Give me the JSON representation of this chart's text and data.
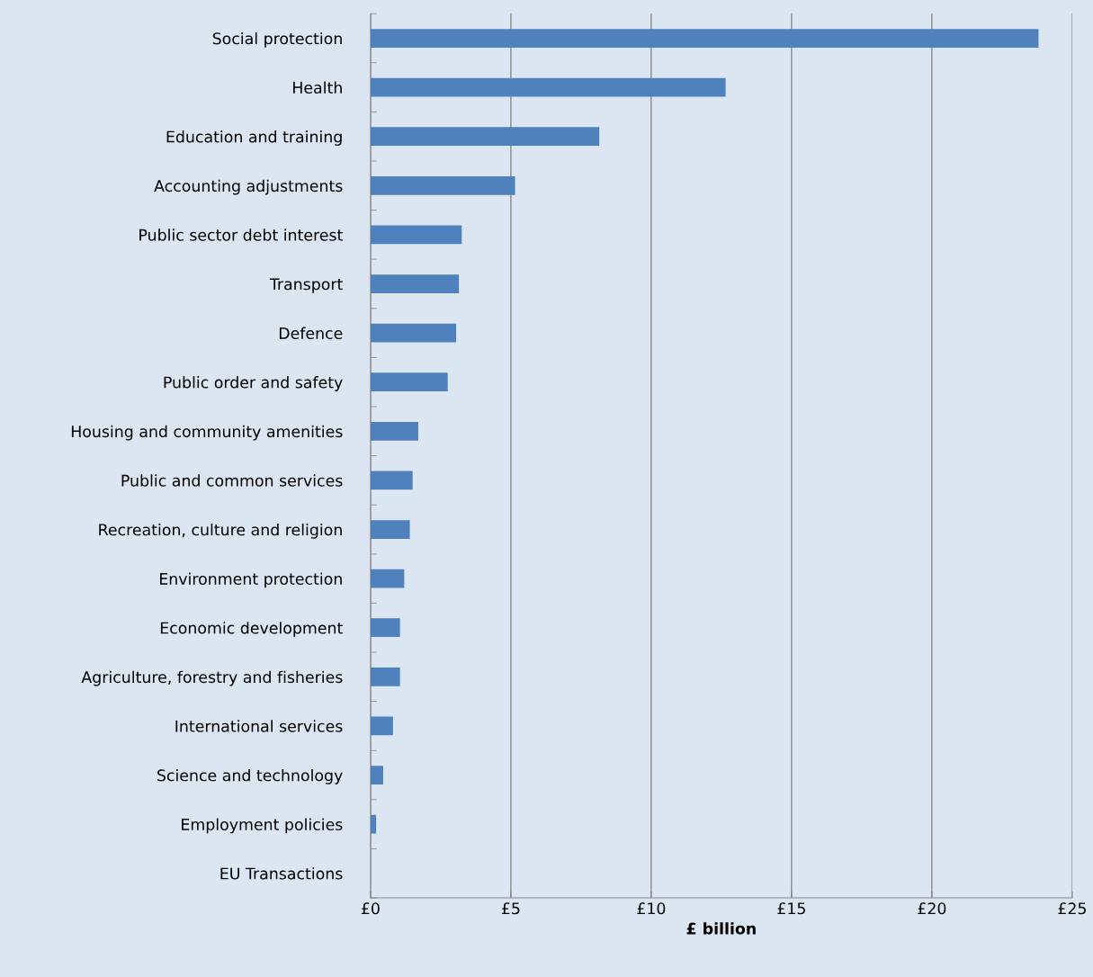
{
  "chart_data": {
    "type": "bar",
    "orientation": "horizontal",
    "xlabel": "£ billion",
    "categories": [
      "Social protection",
      "Health",
      "Education and training",
      "Accounting adjustments",
      "Public sector debt interest",
      "Transport",
      "Defence",
      "Public order and safety",
      "Housing and community amenities",
      "Public and common services",
      "Recreation, culture and religion",
      "Environment protection",
      "Economic development",
      "Agriculture, forestry and fisheries",
      "International services",
      "Science and technology",
      "Employment policies",
      "EU Transactions"
    ],
    "values": [
      23.8,
      12.65,
      8.15,
      5.15,
      3.25,
      3.15,
      3.05,
      2.75,
      1.7,
      1.5,
      1.4,
      1.2,
      1.05,
      1.05,
      0.8,
      0.45,
      0.2,
      null
    ],
    "color": "#4f81bd",
    "xlim": [
      0,
      25
    ],
    "xticks": [
      {
        "value": 0,
        "label": "£0"
      },
      {
        "value": 5,
        "label": "£5"
      },
      {
        "value": 10,
        "label": "£10"
      },
      {
        "value": 15,
        "label": "£15"
      },
      {
        "value": 20,
        "label": "£20"
      },
      {
        "value": 25,
        "label": "£25"
      }
    ],
    "grid": "x",
    "legend": false
  }
}
